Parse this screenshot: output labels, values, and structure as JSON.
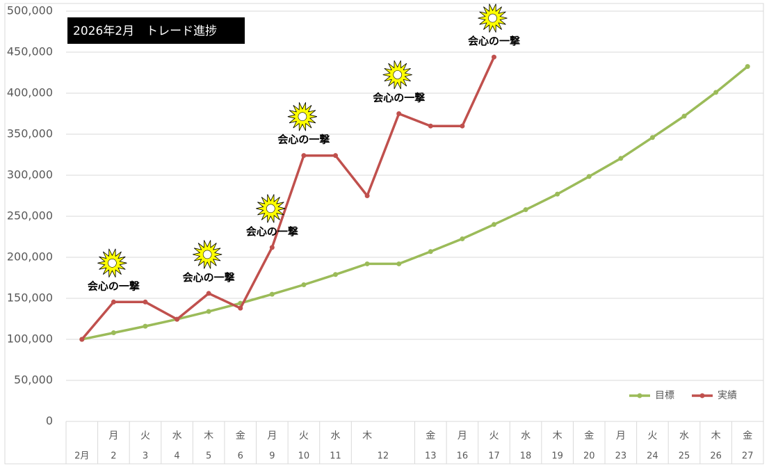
{
  "chart_data": {
    "type": "line",
    "title": "2026年2月　トレード進捗",
    "categories": [
      "2月",
      "2",
      "3",
      "4",
      "5",
      "6",
      "9",
      "10",
      "11",
      "12",
      null,
      "13",
      "16",
      "17",
      "18",
      "19",
      "20",
      "23",
      "24",
      "25",
      "26",
      "27"
    ],
    "weekdays": [
      null,
      "月",
      "火",
      "水",
      "木",
      "金",
      "月",
      "火",
      "水",
      "木",
      null,
      "金",
      "月",
      "火",
      "水",
      "木",
      "金",
      "月",
      "火",
      "水",
      "木",
      "金"
    ],
    "series": [
      {
        "name": "目標",
        "color": "#9bbb59",
        "values": [
          100000,
          108000,
          116000,
          124500,
          134000,
          144000,
          155000,
          166500,
          179000,
          192000,
          192000,
          207000,
          222500,
          240000,
          258000,
          277000,
          298500,
          320500,
          346000,
          372000,
          401000,
          432500
        ]
      },
      {
        "name": "実績",
        "color": "#c0504d",
        "values": [
          100000,
          145500,
          145500,
          124500,
          156000,
          138000,
          212000,
          324000,
          324000,
          275000,
          375000,
          360000,
          360000,
          444000,
          null,
          null,
          null,
          null,
          null,
          null,
          null,
          null
        ],
        "annotations": [
          null,
          "会心の一撃",
          null,
          null,
          "会心の一撃",
          null,
          "会心の一撃",
          "会心の一撃",
          null,
          null,
          "会心の一撃",
          null,
          null,
          "会心の一撃",
          null,
          null,
          null,
          null,
          null,
          null,
          null,
          null
        ]
      }
    ],
    "ylim": [
      0,
      500000
    ],
    "yticks": [
      0,
      {
        "value": 50000,
        "label": "50,000"
      },
      {
        "value": 100000,
        "label": "100,000"
      },
      {
        "value": 150000,
        "label": "150,000"
      },
      {
        "value": 200000,
        "label": "200,000"
      },
      {
        "value": 250000,
        "label": "250,000"
      },
      {
        "value": 300000,
        "label": "300,000"
      },
      {
        "value": 350000,
        "label": "350,000"
      },
      {
        "value": 400000,
        "label": "400,000"
      },
      {
        "value": 450000,
        "label": "450,000"
      },
      {
        "value": 500000,
        "label": "500,000"
      }
    ],
    "grid": true,
    "legend": "bottom-right"
  }
}
